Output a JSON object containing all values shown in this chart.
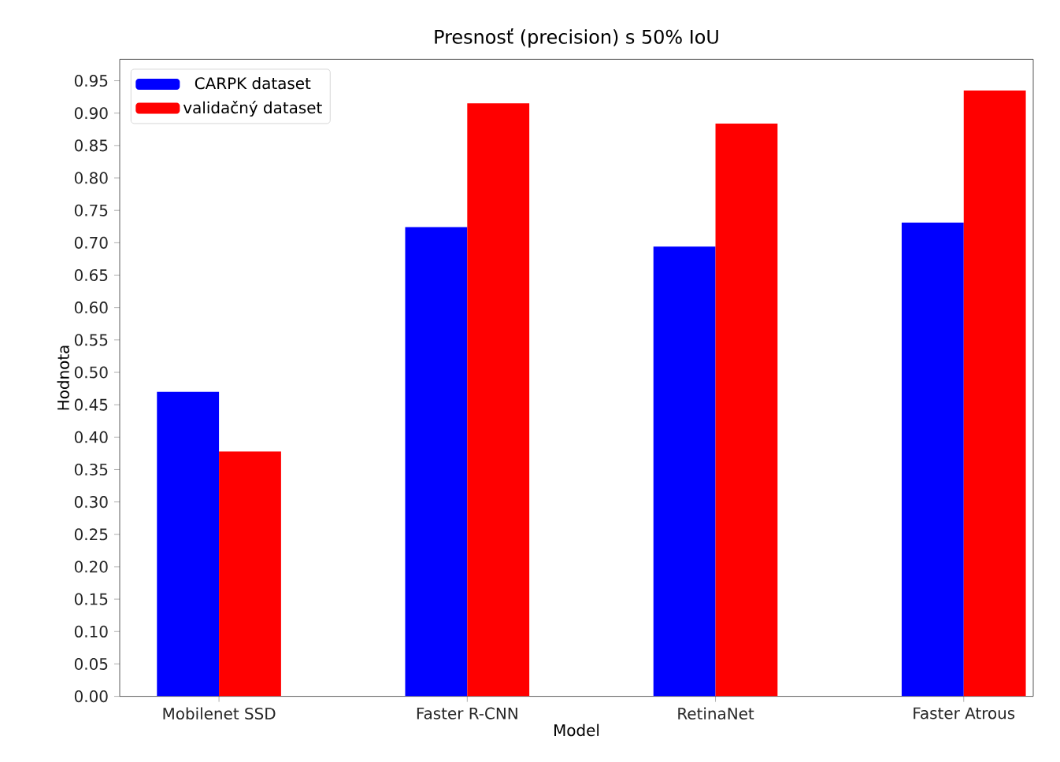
{
  "chart_data": {
    "type": "bar",
    "title": "Presnosť (precision) s 50% IoU",
    "xlabel": "Model",
    "ylabel": "Hodnota",
    "categories": [
      "Mobilenet SSD",
      "Faster R-CNN",
      "RetinaNet",
      "Faster Atrous"
    ],
    "series": [
      {
        "name": "CARPK dataset",
        "color": "#0000ff",
        "values": [
          0.47,
          0.724,
          0.694,
          0.731
        ]
      },
      {
        "name": "validačný dataset",
        "color": "#ff0000",
        "values": [
          0.378,
          0.915,
          0.884,
          0.935
        ]
      }
    ],
    "ylim": [
      0,
      0.983
    ],
    "yticks": [
      {
        "value": 0,
        "label": "0.00"
      },
      {
        "value": 0.05,
        "label": "0.05"
      },
      {
        "value": 0.1,
        "label": "0.10"
      },
      {
        "value": 0.15,
        "label": "0.15"
      },
      {
        "value": 0.2,
        "label": "0.20"
      },
      {
        "value": 0.25,
        "label": "0.25"
      },
      {
        "value": 0.3,
        "label": "0.30"
      },
      {
        "value": 0.35,
        "label": "0.35"
      },
      {
        "value": 0.4,
        "label": "0.40"
      },
      {
        "value": 0.45,
        "label": "0.45"
      },
      {
        "value": 0.5,
        "label": "0.50"
      },
      {
        "value": 0.55,
        "label": "0.55"
      },
      {
        "value": 0.6,
        "label": "0.60"
      },
      {
        "value": 0.65,
        "label": "0.65"
      },
      {
        "value": 0.7,
        "label": "0.70"
      },
      {
        "value": 0.75,
        "label": "0.75"
      },
      {
        "value": 0.8,
        "label": "0.80"
      },
      {
        "value": 0.85,
        "label": "0.85"
      },
      {
        "value": 0.9,
        "label": "0.90"
      },
      {
        "value": 0.95,
        "label": "0.95"
      }
    ],
    "grid": false,
    "legend": "top left"
  }
}
